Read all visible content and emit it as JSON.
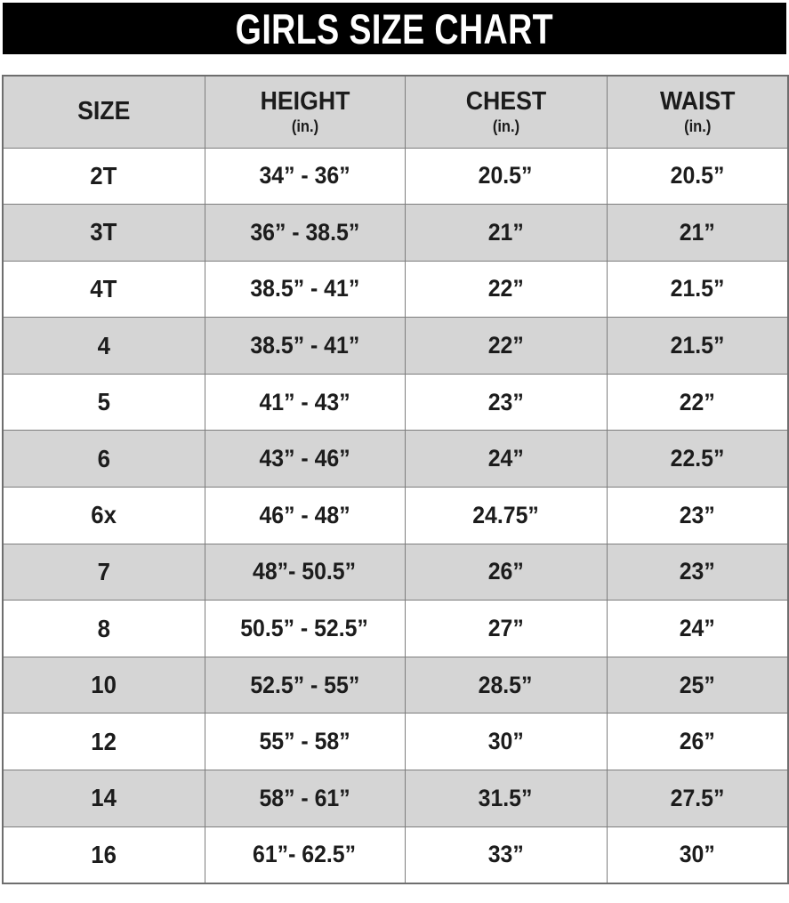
{
  "title": "GIRLS SIZE CHART",
  "colors": {
    "banner_bg": "#000000",
    "banner_text": "#ffffff",
    "row_bg": "#ffffff",
    "row_alt_bg": "#d5d5d5",
    "border": "#7d7d7d",
    "outer_border": "#6e6e6e",
    "text": "#1c1c1c"
  },
  "chart_data": {
    "type": "table",
    "title": "GIRLS SIZE CHART",
    "columns": [
      {
        "label": "SIZE",
        "unit": ""
      },
      {
        "label": "HEIGHT",
        "unit": "(in.)"
      },
      {
        "label": "CHEST",
        "unit": "(in.)"
      },
      {
        "label": "WAIST",
        "unit": "(in.)"
      }
    ],
    "rows": [
      {
        "size": "2T",
        "height": "34” - 36”",
        "chest": "20.5”",
        "waist": "20.5”"
      },
      {
        "size": "3T",
        "height": "36” - 38.5”",
        "chest": "21”",
        "waist": "21”"
      },
      {
        "size": "4T",
        "height": "38.5” - 41”",
        "chest": "22”",
        "waist": "21.5”"
      },
      {
        "size": "4",
        "height": "38.5” - 41”",
        "chest": "22”",
        "waist": "21.5”"
      },
      {
        "size": "5",
        "height": "41” - 43”",
        "chest": "23”",
        "waist": "22”"
      },
      {
        "size": "6",
        "height": "43” - 46”",
        "chest": "24”",
        "waist": "22.5”"
      },
      {
        "size": "6x",
        "height": "46” - 48”",
        "chest": "24.75”",
        "waist": "23”"
      },
      {
        "size": "7",
        "height": "48”- 50.5”",
        "chest": "26”",
        "waist": "23”"
      },
      {
        "size": "8",
        "height": "50.5” - 52.5”",
        "chest": "27”",
        "waist": "24”"
      },
      {
        "size": "10",
        "height": "52.5” - 55”",
        "chest": "28.5”",
        "waist": "25”"
      },
      {
        "size": "12",
        "height": "55” - 58”",
        "chest": "30”",
        "waist": "26”"
      },
      {
        "size": "14",
        "height": "58” - 61”",
        "chest": "31.5”",
        "waist": "27.5”"
      },
      {
        "size": "16",
        "height": "61”- 62.5”",
        "chest": "33”",
        "waist": "30”"
      }
    ]
  }
}
